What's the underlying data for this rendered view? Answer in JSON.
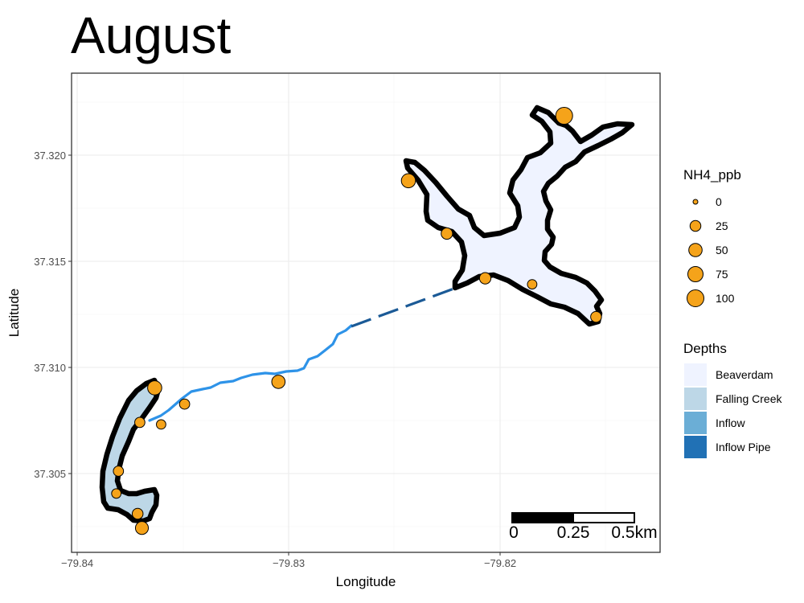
{
  "title": "August",
  "x_axis": {
    "label": "Longitude",
    "ticks": [
      "−79.84",
      "−79.83",
      "−79.82"
    ]
  },
  "y_axis": {
    "label": "Latitude",
    "ticks": [
      "37.305",
      "37.310",
      "37.315",
      "37.320"
    ]
  },
  "legend_nh4": {
    "title": "NH4_ppb",
    "entries": [
      {
        "label": "0",
        "value": 0
      },
      {
        "label": "25",
        "value": 25
      },
      {
        "label": "50",
        "value": 50
      },
      {
        "label": "75",
        "value": 75
      },
      {
        "label": "100",
        "value": 100
      }
    ]
  },
  "legend_depths": {
    "title": "Depths",
    "entries": [
      {
        "label": "Beaverdam",
        "color": "#eff3ff"
      },
      {
        "label": "Falling Creek",
        "color": "#bdd7e7"
      },
      {
        "label": "Inflow",
        "color": "#6baed6"
      },
      {
        "label": "Inflow Pipe",
        "color": "#2171b5"
      }
    ]
  },
  "scale_bar": {
    "labels": [
      "0",
      "0.25",
      "0.5km"
    ]
  },
  "map_data": {
    "xlim": [
      -79.8403,
      -79.8127
    ],
    "ylim": [
      37.3013,
      37.3249
    ],
    "marker_color": "#f5a31a",
    "river_color": "#2e93e8",
    "pipe_color": "#1b5a96",
    "samples": [
      {
        "lon": -79.8172,
        "lat": 37.3228,
        "nh4": 100
      },
      {
        "lon": -79.8245,
        "lat": 37.3196,
        "nh4": 60
      },
      {
        "lon": -79.8227,
        "lat": 37.317,
        "nh4": 30
      },
      {
        "lon": -79.8209,
        "lat": 37.3148,
        "nh4": 30
      },
      {
        "lon": -79.8187,
        "lat": 37.3145,
        "nh4": 15
      },
      {
        "lon": -79.8157,
        "lat": 37.3129,
        "nh4": 25
      },
      {
        "lon": -79.8306,
        "lat": 37.3097,
        "nh4": 50
      },
      {
        "lon": -79.835,
        "lat": 37.3086,
        "nh4": 20
      },
      {
        "lon": -79.8364,
        "lat": 37.3094,
        "nh4": 60
      },
      {
        "lon": -79.8371,
        "lat": 37.3077,
        "nh4": 20
      },
      {
        "lon": -79.8361,
        "lat": 37.3076,
        "nh4": 15
      },
      {
        "lon": -79.8381,
        "lat": 37.3053,
        "nh4": 20
      },
      {
        "lon": -79.8382,
        "lat": 37.3042,
        "nh4": 15
      },
      {
        "lon": -79.8372,
        "lat": 37.3032,
        "nh4": 25
      },
      {
        "lon": -79.837,
        "lat": 37.3025,
        "nh4": 45
      }
    ]
  }
}
